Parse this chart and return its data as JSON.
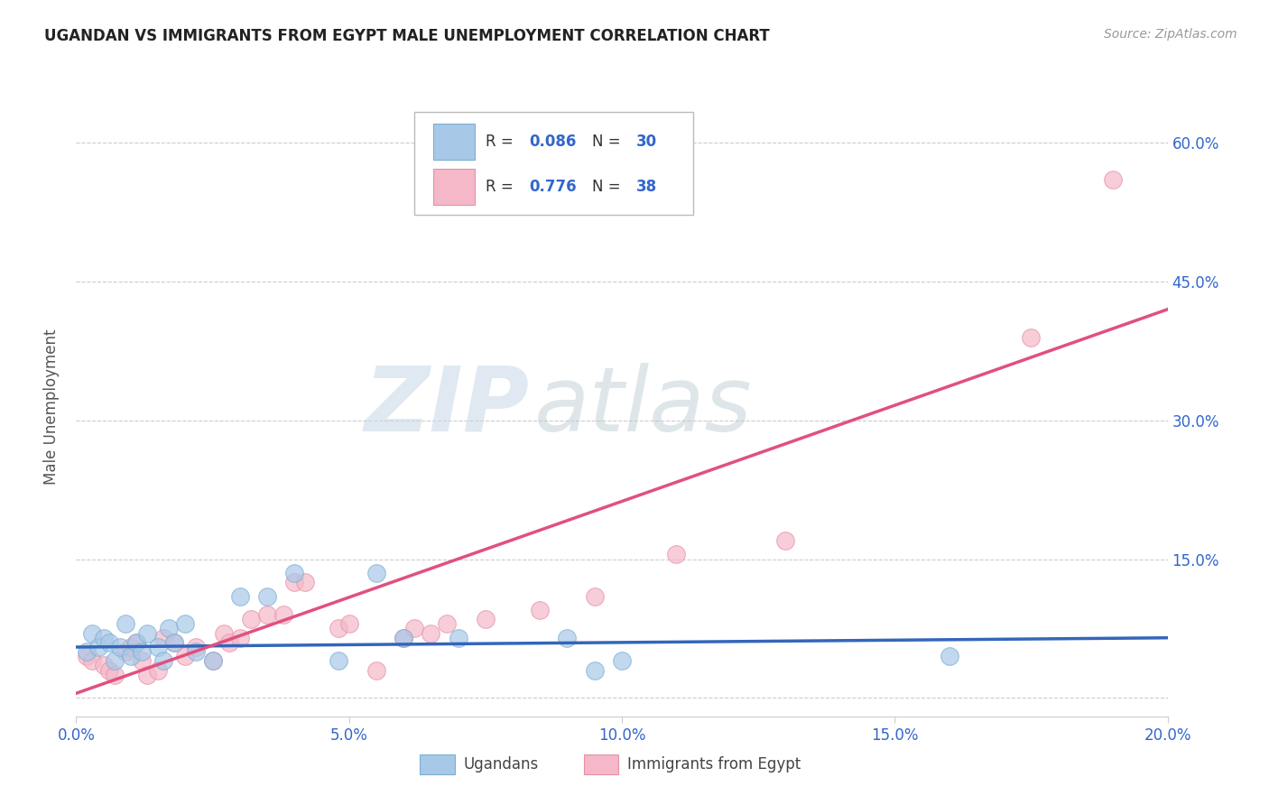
{
  "title": "UGANDAN VS IMMIGRANTS FROM EGYPT MALE UNEMPLOYMENT CORRELATION CHART",
  "source": "Source: ZipAtlas.com",
  "xlabel_label": "Ugandans",
  "xlabel_label2": "Immigrants from Egypt",
  "ylabel": "Male Unemployment",
  "watermark_zip": "ZIP",
  "watermark_atlas": "atlas",
  "xlim": [
    0.0,
    0.2
  ],
  "ylim": [
    -0.02,
    0.65
  ],
  "yticks": [
    0.0,
    0.15,
    0.3,
    0.45,
    0.6
  ],
  "xticks": [
    0.0,
    0.05,
    0.1,
    0.15,
    0.2
  ],
  "xtick_labels": [
    "0.0%",
    "5.0%",
    "10.0%",
    "15.0%",
    "20.0%"
  ],
  "ytick_right_labels": [
    "",
    "15.0%",
    "30.0%",
    "45.0%",
    "60.0%"
  ],
  "blue_color": "#a8c8e8",
  "blue_edge_color": "#7aafd4",
  "pink_color": "#f4b8c8",
  "pink_edge_color": "#e890a8",
  "blue_line_color": "#3366bb",
  "pink_line_color": "#e05080",
  "legend_R1": "0.086",
  "legend_N1": "30",
  "legend_R2": "0.776",
  "legend_N2": "38",
  "blue_scatter_x": [
    0.002,
    0.003,
    0.004,
    0.005,
    0.006,
    0.007,
    0.008,
    0.009,
    0.01,
    0.011,
    0.012,
    0.013,
    0.015,
    0.016,
    0.017,
    0.018,
    0.02,
    0.022,
    0.025,
    0.03,
    0.035,
    0.04,
    0.048,
    0.055,
    0.06,
    0.07,
    0.09,
    0.095,
    0.1,
    0.16
  ],
  "blue_scatter_y": [
    0.05,
    0.07,
    0.055,
    0.065,
    0.06,
    0.04,
    0.055,
    0.08,
    0.045,
    0.06,
    0.05,
    0.07,
    0.055,
    0.04,
    0.075,
    0.06,
    0.08,
    0.05,
    0.04,
    0.11,
    0.11,
    0.135,
    0.04,
    0.135,
    0.065,
    0.065,
    0.065,
    0.03,
    0.04,
    0.045
  ],
  "pink_scatter_x": [
    0.002,
    0.003,
    0.005,
    0.006,
    0.007,
    0.009,
    0.01,
    0.011,
    0.012,
    0.013,
    0.015,
    0.016,
    0.018,
    0.02,
    0.022,
    0.025,
    0.027,
    0.028,
    0.03,
    0.032,
    0.035,
    0.038,
    0.04,
    0.042,
    0.048,
    0.05,
    0.055,
    0.06,
    0.062,
    0.065,
    0.068,
    0.075,
    0.085,
    0.095,
    0.11,
    0.13,
    0.175,
    0.19
  ],
  "pink_scatter_y": [
    0.045,
    0.04,
    0.035,
    0.03,
    0.025,
    0.05,
    0.055,
    0.06,
    0.04,
    0.025,
    0.03,
    0.065,
    0.06,
    0.045,
    0.055,
    0.04,
    0.07,
    0.06,
    0.065,
    0.085,
    0.09,
    0.09,
    0.125,
    0.125,
    0.075,
    0.08,
    0.03,
    0.065,
    0.075,
    0.07,
    0.08,
    0.085,
    0.095,
    0.11,
    0.155,
    0.17,
    0.39,
    0.56
  ],
  "blue_trend_x": [
    0.0,
    0.2
  ],
  "blue_trend_y": [
    0.055,
    0.065
  ],
  "pink_trend_x": [
    0.0,
    0.2
  ],
  "pink_trend_y": [
    0.005,
    0.42
  ]
}
